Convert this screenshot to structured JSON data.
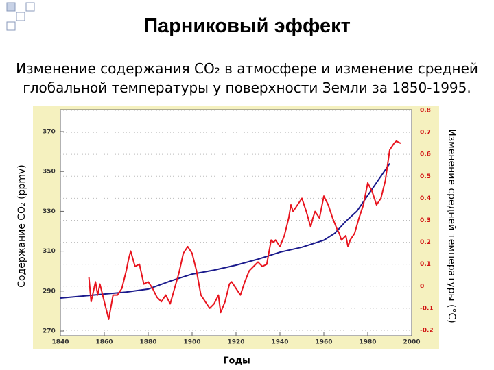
{
  "chart_data": {
    "type": "line",
    "title": "Парниковый эффект",
    "subtitle": "Изменение содержания CO₂ в атмосфере и изменение средней глобальной температуры у поверхности Земли за 1850-1995.",
    "x_label": "Годы",
    "y_label": "Содержание CO₂ (ppmv)",
    "y2_label": "Изменение средней температуры (°С)",
    "xlim": [
      1840,
      2000
    ],
    "xticks": [
      1840,
      1860,
      1880,
      1900,
      1920,
      1940,
      1960,
      1980,
      2000
    ],
    "ylim": [
      267.6,
      381
    ],
    "yticks": [
      270,
      290,
      310,
      330,
      350,
      370
    ],
    "y2lim": [
      -0.225,
      0.803
    ],
    "y2ticks": [
      -0.2,
      -0.1,
      0,
      0.1,
      0.2,
      0.3,
      0.4,
      0.5,
      0.6,
      0.7,
      0.8
    ],
    "grid": true,
    "series": [
      {
        "color": "#1a1a8c",
        "axis": "y",
        "x": [
          1840,
          1850,
          1860,
          1870,
          1880,
          1890,
          1900,
          1910,
          1920,
          1930,
          1940,
          1950,
          1960,
          1965,
          1970,
          1975,
          1980,
          1985,
          1990
        ],
        "values": [
          286.5,
          287.5,
          288.5,
          289.5,
          291,
          295,
          298.5,
          300.5,
          303,
          306,
          309.5,
          312,
          315.5,
          319,
          325,
          330,
          338,
          346,
          354
        ]
      },
      {
        "color": "#e8141e",
        "axis": "y2",
        "x": [
          1853,
          1854,
          1856,
          1857,
          1858,
          1860,
          1862,
          1864,
          1866,
          1868,
          1870,
          1871,
          1872,
          1874,
          1876,
          1878,
          1880,
          1882,
          1884,
          1886,
          1888,
          1890,
          1892,
          1894,
          1896,
          1898,
          1900,
          1902,
          1904,
          1906,
          1908,
          1910,
          1912,
          1913,
          1915,
          1917,
          1918,
          1920,
          1922,
          1924,
          1926,
          1928,
          1930,
          1932,
          1934,
          1936,
          1937,
          1938,
          1940,
          1942,
          1943,
          1944,
          1945,
          1946,
          1948,
          1950,
          1951,
          1952,
          1954,
          1955,
          1956,
          1958,
          1960,
          1962,
          1964,
          1966,
          1967,
          1968,
          1970,
          1971,
          1972,
          1974,
          1976,
          1978,
          1980,
          1982,
          1984,
          1986,
          1988,
          1990,
          1992,
          1993,
          1995
        ],
        "values": [
          0.04,
          -0.07,
          0.02,
          -0.04,
          0.01,
          -0.07,
          -0.15,
          -0.04,
          -0.04,
          -0.01,
          0.07,
          0.12,
          0.16,
          0.09,
          0.1,
          0.01,
          0.02,
          -0.01,
          -0.05,
          -0.07,
          -0.04,
          -0.08,
          -0.01,
          0.06,
          0.15,
          0.18,
          0.15,
          0.07,
          -0.04,
          -0.07,
          -0.1,
          -0.08,
          -0.04,
          -0.12,
          -0.07,
          0.01,
          0.02,
          -0.01,
          -0.04,
          0.02,
          0.07,
          0.09,
          0.11,
          0.09,
          0.1,
          0.21,
          0.2,
          0.21,
          0.18,
          0.23,
          0.27,
          0.31,
          0.37,
          0.34,
          0.37,
          0.4,
          0.37,
          0.34,
          0.27,
          0.31,
          0.34,
          0.31,
          0.41,
          0.37,
          0.31,
          0.26,
          0.24,
          0.21,
          0.23,
          0.18,
          0.21,
          0.24,
          0.31,
          0.37,
          0.47,
          0.43,
          0.37,
          0.4,
          0.48,
          0.62,
          0.65,
          0.66,
          0.65
        ]
      }
    ]
  }
}
